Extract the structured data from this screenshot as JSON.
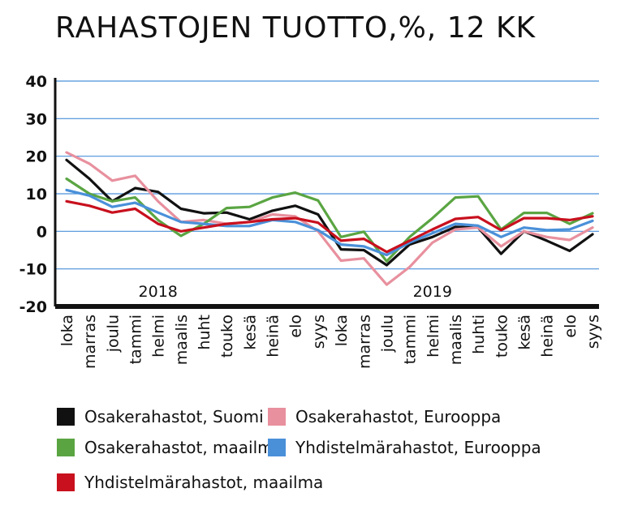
{
  "chart_data": {
    "type": "line",
    "title": "RAHASTOJEN TUOTTO,%, 12 KK",
    "categories": [
      "loka",
      "marras",
      "joulu",
      "tammi",
      "helmi",
      "maalis",
      "huht",
      "touko",
      "kesä",
      "heinä",
      "elo",
      "syys",
      "loka",
      "marras",
      "joulu",
      "tammi",
      "helmi",
      "maalis",
      "huhti",
      "touko",
      "kesä",
      "heinä",
      "elo",
      "syys"
    ],
    "year_labels": [
      {
        "label": "2018",
        "at_index": 4
      },
      {
        "label": "2019",
        "at_index": 16
      }
    ],
    "ylim": [
      -20,
      40
    ],
    "yticks": [
      "40",
      "30",
      "20",
      "10",
      "0",
      "-10",
      "-20"
    ],
    "ytick_values": [
      40,
      30,
      20,
      10,
      0,
      -10,
      -20
    ],
    "grid": true,
    "legend_position": "bottom",
    "series": [
      {
        "name": "Osakerahastot, Suomi",
        "color": "#111111",
        "values": [
          19,
          14,
          8,
          11.5,
          10.5,
          6,
          4.8,
          5,
          3.2,
          5.5,
          6.8,
          4.5,
          -4.8,
          -5,
          -9,
          -3.5,
          -1.5,
          1.2,
          1,
          -6,
          0,
          -2.5,
          -5.2,
          -0.8
        ]
      },
      {
        "name": "Osakerahastot, Eurooppa",
        "color": "#e8909e",
        "values": [
          21,
          18,
          13.5,
          14.8,
          8,
          2.5,
          3,
          2,
          2.5,
          4.5,
          4,
          0,
          -7.8,
          -7.2,
          -14.2,
          -9.5,
          -3,
          0.5,
          1,
          -4,
          0,
          -1.5,
          -2.3,
          1
        ]
      },
      {
        "name": "Osakerahastot, maailma",
        "color": "#5aa542",
        "values": [
          14,
          10,
          8,
          9,
          3,
          -1.2,
          2,
          6.2,
          6.5,
          9,
          10.3,
          8.2,
          -1.5,
          -0.1,
          -8,
          -1.5,
          3.5,
          9,
          9.3,
          0.5,
          4.9,
          4.9,
          2,
          4.8
        ]
      },
      {
        "name": "Yhdistelmärahastot, Eurooppa",
        "color": "#4a90d9",
        "values": [
          11,
          9.5,
          6.5,
          7.6,
          5,
          2.5,
          2,
          1.4,
          1.4,
          3,
          2.5,
          0.3,
          -3.5,
          -4,
          -6.3,
          -3,
          -0.5,
          2,
          1.5,
          -1.5,
          1,
          0.3,
          0.5,
          2.8
        ]
      },
      {
        "name": "Yhdistelmärahastot, maailma",
        "color": "#c8101e",
        "values": [
          8,
          6.8,
          5,
          6,
          2,
          0,
          1,
          2,
          2.5,
          3.2,
          3.5,
          2.3,
          -2.5,
          -2,
          -5.5,
          -2.5,
          0.5,
          3.3,
          3.8,
          0.3,
          3.5,
          3.5,
          3,
          4
        ]
      }
    ]
  }
}
